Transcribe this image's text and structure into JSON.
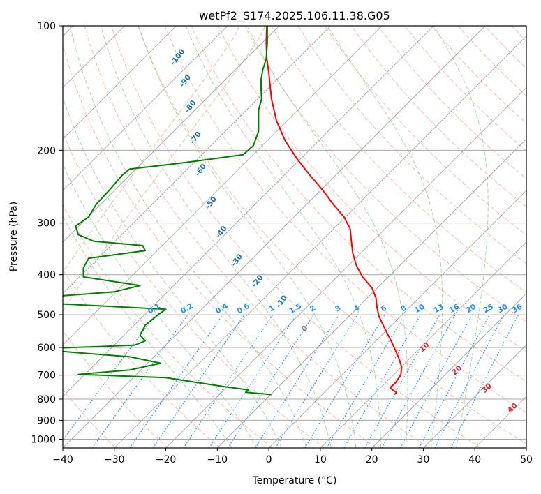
{
  "chart_data": {
    "type": "line",
    "chart_kind": "skew-T log-p diagram",
    "title": "wetPf2_S174.2025.106.11.38.G05",
    "xlabel": "Temperature (°C)",
    "ylabel": "Pressure (hPa)",
    "xlim": [
      -40,
      50
    ],
    "ylim": [
      1050,
      100
    ],
    "y_scale": "log",
    "x_ticks": [
      -40,
      -30,
      -20,
      -10,
      0,
      10,
      20,
      30,
      40,
      50
    ],
    "x_tick_labels": [
      "−40",
      "−30",
      "−20",
      "−10",
      "0",
      "10",
      "20",
      "30",
      "40",
      "50"
    ],
    "y_ticks": [
      100,
      200,
      300,
      400,
      500,
      600,
      700,
      800,
      900,
      1000
    ],
    "y_tick_labels": [
      "100",
      "200",
      "300",
      "400",
      "500",
      "600",
      "700",
      "800",
      "900",
      "1000"
    ],
    "grid": true,
    "colors": {
      "temperature": "#ff0000",
      "dewpoint": "#008000",
      "isotherm": "#808080",
      "dry_adiabat": "#fa8060",
      "moist_adiabat": "#6ab46a",
      "mixing_ratio": "#1e90ff",
      "thermal_curve": "#d2b48c",
      "dry_label": "#d62728",
      "moist_label": "#1f77b4",
      "mixing_label": "#1e90ff"
    },
    "series": [
      {
        "role": "temperature",
        "points": [
          [
            24.4,
            780
          ],
          [
            24.8,
            770
          ],
          [
            24.0,
            760
          ],
          [
            23.6,
            750
          ],
          [
            24.6,
            730
          ],
          [
            25.6,
            700
          ],
          [
            25.8,
            670
          ],
          [
            25.3,
            640
          ],
          [
            24.6,
            610
          ],
          [
            23.8,
            580
          ],
          [
            23.0,
            555
          ],
          [
            22.2,
            530
          ],
          [
            21.4,
            505
          ],
          [
            21.0,
            480
          ],
          [
            20.8,
            455
          ],
          [
            20.0,
            430
          ],
          [
            18.2,
            405
          ],
          [
            17.0,
            380
          ],
          [
            16.3,
            355
          ],
          [
            16.0,
            330
          ],
          [
            15.8,
            310
          ],
          [
            14.6,
            290
          ],
          [
            12.5,
            270
          ],
          [
            10.5,
            250
          ],
          [
            8.0,
            230
          ],
          [
            5.5,
            210
          ],
          [
            3.2,
            190
          ],
          [
            1.5,
            170
          ],
          [
            0.5,
            150
          ],
          [
            0.0,
            130
          ],
          [
            -0.4,
            120
          ],
          [
            -0.5,
            110
          ],
          [
            -0.4,
            100
          ]
        ]
      },
      {
        "role": "dewpoint",
        "points": [
          [
            0.5,
            780
          ],
          [
            -4.5,
            770
          ],
          [
            -4.0,
            760
          ],
          [
            -9.0,
            745
          ],
          [
            -20.0,
            710
          ],
          [
            -37.0,
            697
          ],
          [
            -27.0,
            680
          ],
          [
            -21.0,
            655
          ],
          [
            -27.0,
            632
          ],
          [
            -39.0,
            615
          ],
          [
            -45.0,
            605
          ],
          [
            -26.0,
            592
          ],
          [
            -24.0,
            578
          ],
          [
            -25.0,
            560
          ],
          [
            -24.5,
            545
          ],
          [
            -24.0,
            530
          ],
          [
            -22.5,
            512
          ],
          [
            -21.5,
            500
          ],
          [
            -20.0,
            485
          ],
          [
            -44.0,
            468
          ],
          [
            -45.0,
            455
          ],
          [
            -30.0,
            440
          ],
          [
            -25.0,
            425
          ],
          [
            -36.0,
            405
          ],
          [
            -36.0,
            385
          ],
          [
            -35.0,
            365
          ],
          [
            -24.0,
            350
          ],
          [
            -24.5,
            340
          ],
          [
            -34.0,
            332
          ],
          [
            -37.0,
            320
          ],
          [
            -37.5,
            305
          ],
          [
            -35.0,
            290
          ],
          [
            -33.5,
            270
          ],
          [
            -31.0,
            250
          ],
          [
            -28.5,
            230
          ],
          [
            -27.0,
            222
          ],
          [
            -16.0,
            214
          ],
          [
            -5.0,
            205
          ],
          [
            -3.0,
            195
          ],
          [
            -2.0,
            180
          ],
          [
            -2.0,
            168
          ],
          [
            -2.0,
            160
          ],
          [
            -1.4,
            150
          ],
          [
            -1.5,
            142
          ],
          [
            -1.5,
            135
          ],
          [
            -1.2,
            128
          ],
          [
            -0.5,
            120
          ],
          [
            -0.3,
            110
          ],
          [
            -0.3,
            100
          ]
        ]
      }
    ],
    "moist_adiabat_labels": [
      "-100",
      "-90",
      "-80",
      "-70",
      "-60",
      "-50",
      "-40",
      "-30",
      "-20",
      "-10",
      "0"
    ],
    "dry_adiabat_labels": [
      "10",
      "20",
      "30",
      "40"
    ],
    "mixing_ratio_labels": [
      "0.1",
      "0.2",
      "0.4",
      "0.6",
      "1",
      "1.5",
      "2",
      "3",
      "4",
      "6",
      "8",
      "10",
      "13",
      "16",
      "20",
      "25",
      "30",
      "36"
    ],
    "mixing_ratio_values": [
      0.1,
      0.2,
      0.4,
      0.6,
      1,
      1.5,
      2,
      3,
      4,
      6,
      8,
      10,
      13,
      16,
      20,
      25,
      30,
      36
    ]
  }
}
